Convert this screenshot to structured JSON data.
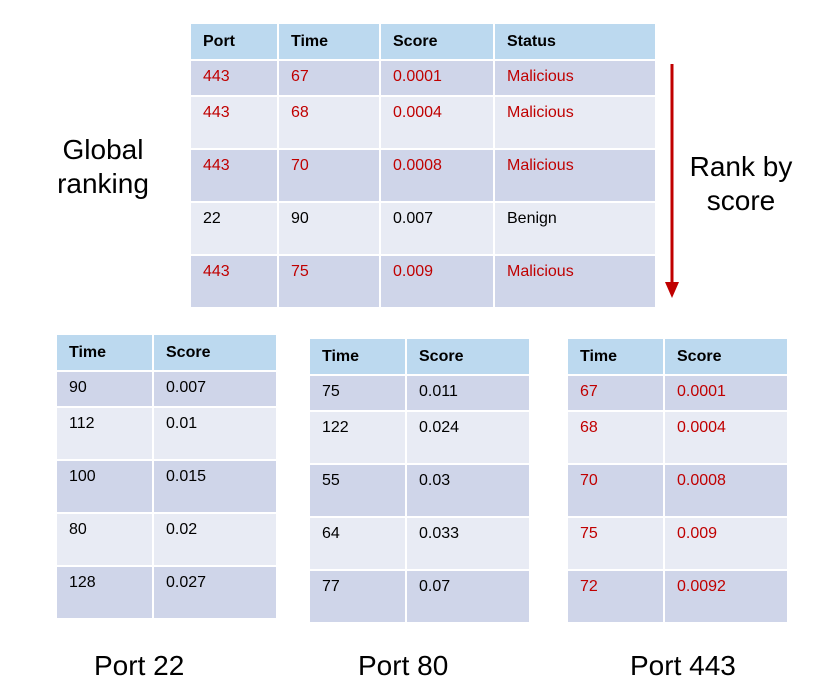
{
  "labels": {
    "global_ranking": [
      "Global",
      "ranking"
    ],
    "rank_by_score": [
      "Rank by",
      "score"
    ],
    "port22": "Port 22",
    "port80": "Port 80",
    "port443": "Port 443"
  },
  "colors": {
    "highlight": "#c00000",
    "header_bg": "#bcd9ef",
    "row_dark": "#cfd5e9",
    "row_light": "#e8ebf4",
    "arrow": "#c00000"
  },
  "global_table": {
    "headers": [
      "Port",
      "Time",
      "Score",
      "Status"
    ],
    "rows": [
      {
        "cells": [
          "443",
          "67",
          "0.0001",
          "Malicious"
        ],
        "highlight": true
      },
      {
        "cells": [
          "443",
          "68",
          "0.0004",
          "Malicious"
        ],
        "highlight": true
      },
      {
        "cells": [
          "443",
          "70",
          "0.0008",
          "Malicious"
        ],
        "highlight": true
      },
      {
        "cells": [
          "22",
          "90",
          "0.007",
          "Benign"
        ],
        "highlight": false
      },
      {
        "cells": [
          "443",
          "75",
          "0.009",
          "Malicious"
        ],
        "highlight": true
      }
    ]
  },
  "port_tables": {
    "t22": {
      "headers": [
        "Time",
        "Score"
      ],
      "rows": [
        {
          "cells": [
            "90",
            "0.007"
          ],
          "highlight": false
        },
        {
          "cells": [
            "112",
            "0.01"
          ],
          "highlight": false
        },
        {
          "cells": [
            "100",
            "0.015"
          ],
          "highlight": false
        },
        {
          "cells": [
            "80",
            "0.02"
          ],
          "highlight": false
        },
        {
          "cells": [
            "128",
            "0.027"
          ],
          "highlight": false
        }
      ]
    },
    "t80": {
      "headers": [
        "Time",
        "Score"
      ],
      "rows": [
        {
          "cells": [
            "75",
            "0.011"
          ],
          "highlight": false
        },
        {
          "cells": [
            "122",
            "0.024"
          ],
          "highlight": false
        },
        {
          "cells": [
            "55",
            "0.03"
          ],
          "highlight": false
        },
        {
          "cells": [
            "64",
            "0.033"
          ],
          "highlight": false
        },
        {
          "cells": [
            "77",
            "0.07"
          ],
          "highlight": false
        }
      ]
    },
    "t443": {
      "headers": [
        "Time",
        "Score"
      ],
      "rows": [
        {
          "cells": [
            "67",
            "0.0001"
          ],
          "highlight": true
        },
        {
          "cells": [
            "68",
            "0.0004"
          ],
          "highlight": true
        },
        {
          "cells": [
            "70",
            "0.0008"
          ],
          "highlight": true
        },
        {
          "cells": [
            "75",
            "0.009"
          ],
          "highlight": true
        },
        {
          "cells": [
            "72",
            "0.0092"
          ],
          "highlight": true
        }
      ]
    }
  }
}
